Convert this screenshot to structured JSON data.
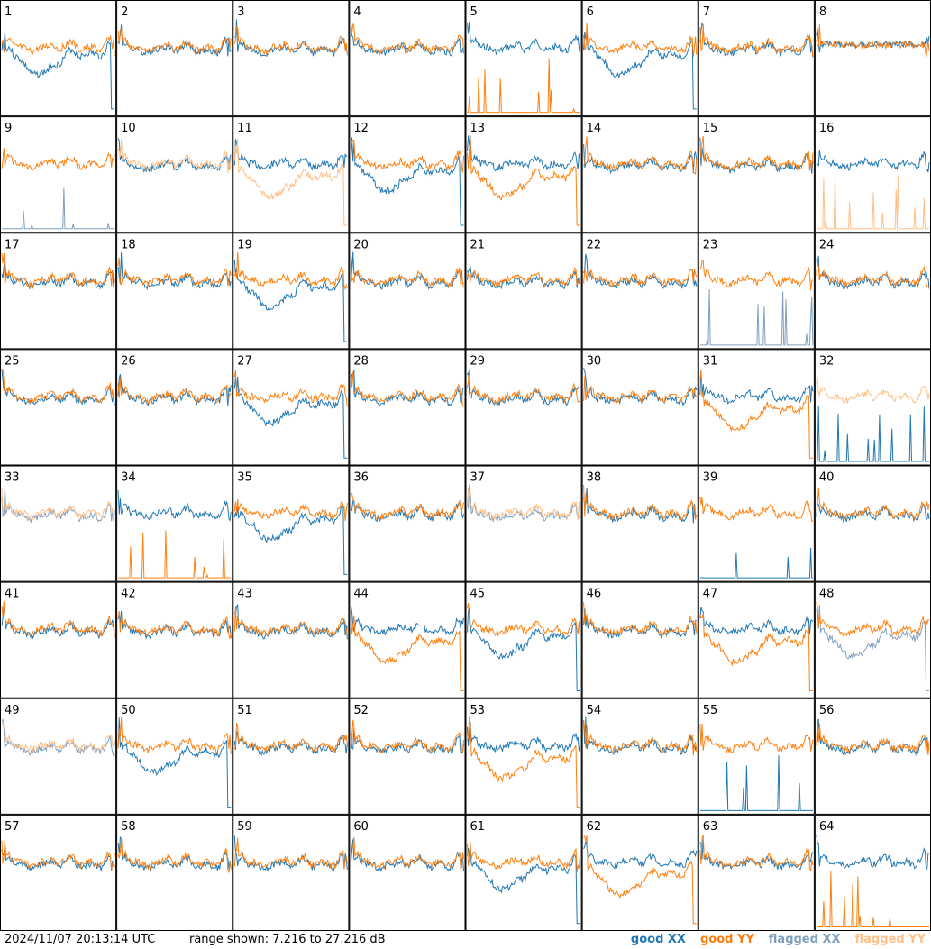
{
  "chart_data": {
    "type": "line",
    "layout": "small-multiples",
    "grid": {
      "rows": 8,
      "cols": 8
    },
    "panels": [
      {
        "id": "1",
        "kind": "xx_dip",
        "flag": "none"
      },
      {
        "id": "2",
        "kind": "both",
        "flag": "none"
      },
      {
        "id": "3",
        "kind": "both",
        "flag": "none"
      },
      {
        "id": "4",
        "kind": "both",
        "flag": "none"
      },
      {
        "id": "5",
        "kind": "yy_bad",
        "flag": "none"
      },
      {
        "id": "6",
        "kind": "xx_dip",
        "flag": "none"
      },
      {
        "id": "7",
        "kind": "both",
        "flag": "none"
      },
      {
        "id": "8",
        "kind": "both_flat",
        "flag": "none"
      },
      {
        "id": "9",
        "kind": "xx_bad",
        "flag": "xx"
      },
      {
        "id": "10",
        "kind": "both",
        "flag": "yy"
      },
      {
        "id": "11",
        "kind": "yy_dip",
        "flag": "yy"
      },
      {
        "id": "12",
        "kind": "xx_dip",
        "flag": "none"
      },
      {
        "id": "13",
        "kind": "yy_dip",
        "flag": "none"
      },
      {
        "id": "14",
        "kind": "both",
        "flag": "none"
      },
      {
        "id": "15",
        "kind": "both",
        "flag": "none"
      },
      {
        "id": "16",
        "kind": "yy_bad",
        "flag": "yy"
      },
      {
        "id": "17",
        "kind": "both",
        "flag": "none"
      },
      {
        "id": "18",
        "kind": "both",
        "flag": "none"
      },
      {
        "id": "19",
        "kind": "xx_dip",
        "flag": "none"
      },
      {
        "id": "20",
        "kind": "both",
        "flag": "none"
      },
      {
        "id": "21",
        "kind": "both",
        "flag": "none"
      },
      {
        "id": "22",
        "kind": "both",
        "flag": "none"
      },
      {
        "id": "23",
        "kind": "xx_bad",
        "flag": "xx"
      },
      {
        "id": "24",
        "kind": "both",
        "flag": "none"
      },
      {
        "id": "25",
        "kind": "both",
        "flag": "none"
      },
      {
        "id": "26",
        "kind": "both",
        "flag": "none"
      },
      {
        "id": "27",
        "kind": "xx_dip",
        "flag": "none"
      },
      {
        "id": "28",
        "kind": "both",
        "flag": "none"
      },
      {
        "id": "29",
        "kind": "both",
        "flag": "none"
      },
      {
        "id": "30",
        "kind": "both",
        "flag": "none"
      },
      {
        "id": "31",
        "kind": "yy_dip",
        "flag": "none"
      },
      {
        "id": "32",
        "kind": "yy_only",
        "flag": "yy"
      },
      {
        "id": "33",
        "kind": "both",
        "flag": "both"
      },
      {
        "id": "34",
        "kind": "yy_bad",
        "flag": "none"
      },
      {
        "id": "35",
        "kind": "xx_dip",
        "flag": "none"
      },
      {
        "id": "36",
        "kind": "both",
        "flag": "none"
      },
      {
        "id": "37",
        "kind": "both",
        "flag": "both"
      },
      {
        "id": "38",
        "kind": "both",
        "flag": "none"
      },
      {
        "id": "39",
        "kind": "xx_bad",
        "flag": "none"
      },
      {
        "id": "40",
        "kind": "both",
        "flag": "none"
      },
      {
        "id": "41",
        "kind": "both",
        "flag": "none"
      },
      {
        "id": "42",
        "kind": "both",
        "flag": "none"
      },
      {
        "id": "43",
        "kind": "both",
        "flag": "none"
      },
      {
        "id": "44",
        "kind": "yy_dip",
        "flag": "none"
      },
      {
        "id": "45",
        "kind": "xx_dip",
        "flag": "none"
      },
      {
        "id": "46",
        "kind": "both",
        "flag": "none"
      },
      {
        "id": "47",
        "kind": "yy_dip",
        "flag": "none"
      },
      {
        "id": "48",
        "kind": "xx_dip",
        "flag": "xx"
      },
      {
        "id": "49",
        "kind": "both",
        "flag": "both"
      },
      {
        "id": "50",
        "kind": "xx_dip",
        "flag": "none"
      },
      {
        "id": "51",
        "kind": "both",
        "flag": "none"
      },
      {
        "id": "52",
        "kind": "both",
        "flag": "none"
      },
      {
        "id": "53",
        "kind": "yy_dip",
        "flag": "none"
      },
      {
        "id": "54",
        "kind": "both",
        "flag": "none"
      },
      {
        "id": "55",
        "kind": "xx_bad",
        "flag": "none"
      },
      {
        "id": "56",
        "kind": "both",
        "flag": "none"
      },
      {
        "id": "57",
        "kind": "both",
        "flag": "none"
      },
      {
        "id": "58",
        "kind": "both",
        "flag": "none"
      },
      {
        "id": "59",
        "kind": "both",
        "flag": "none"
      },
      {
        "id": "60",
        "kind": "both",
        "flag": "none"
      },
      {
        "id": "61",
        "kind": "xx_dip",
        "flag": "none"
      },
      {
        "id": "62",
        "kind": "yy_dip",
        "flag": "none"
      },
      {
        "id": "63",
        "kind": "both",
        "flag": "none"
      },
      {
        "id": "64",
        "kind": "yy_bad",
        "flag": "none"
      }
    ],
    "ylim": [
      7.216,
      27.216
    ],
    "yunit": "dB",
    "grid_lines": false,
    "legend_position": "bottom-right",
    "colors": {
      "good_xx": "#1f77b4",
      "good_yy": "#ff7f0e",
      "flagged_xx": "#7f9fbf",
      "flagged_yy": "#ffbf87"
    }
  },
  "footer": {
    "timestamp": "2024/11/07 20:13:14 UTC",
    "range": "range shown: 7.216 to 27.216 dB"
  },
  "legend": {
    "good_xx": "good XX",
    "good_yy": "good YY",
    "flagged_xx": "flagged XX",
    "flagged_yy": "flagged YY"
  }
}
